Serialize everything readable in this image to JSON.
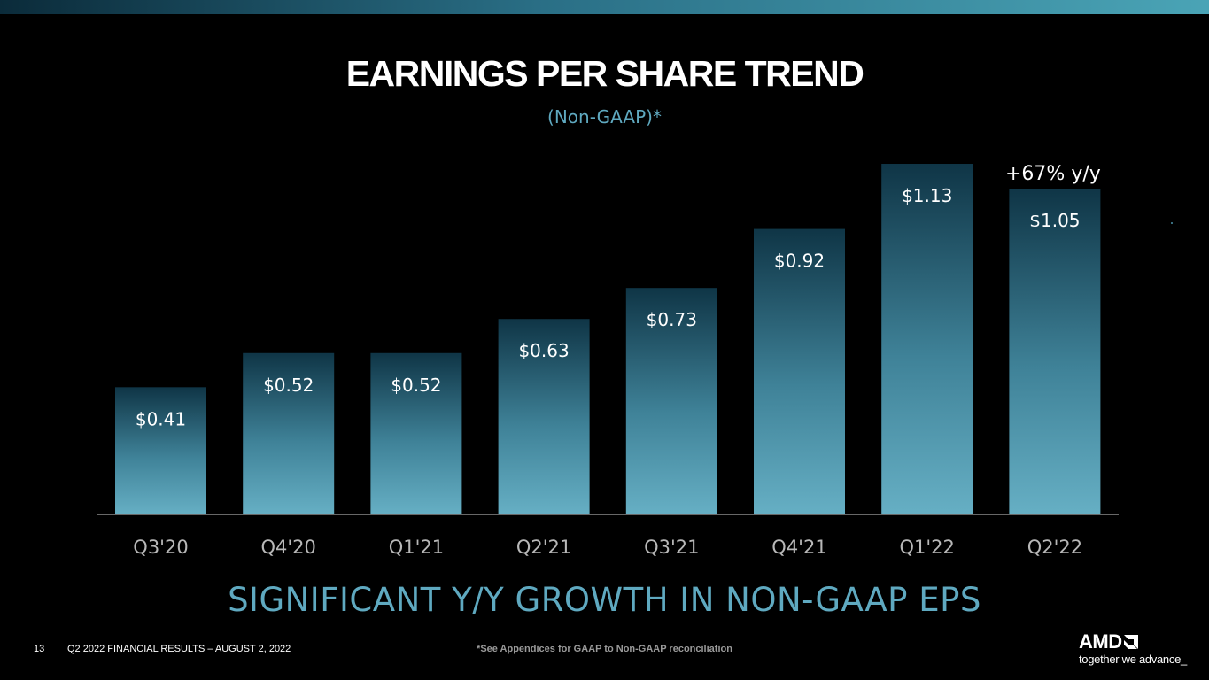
{
  "title": "EARNINGS PER SHARE TREND",
  "subtitle": "(Non-GAAP)*",
  "headline": "SIGNIFICANT Y/Y GROWTH IN NON-GAAP EPS",
  "footer": {
    "page_number": "13",
    "text": "Q2 2022 FINANCIAL RESULTS – AUGUST 2, 2022",
    "footnote": "*See Appendices for GAAP to Non-GAAP reconciliation"
  },
  "logo": {
    "brand": "AMD",
    "tagline": "together we advance_"
  },
  "chart_data": {
    "type": "bar",
    "title": "EARNINGS PER SHARE TREND",
    "subtitle": "(Non-GAAP)*",
    "xlabel": "",
    "ylabel": "",
    "ylim": [
      0,
      1.13
    ],
    "grid": false,
    "categories": [
      "Q3'20",
      "Q4'20",
      "Q1'21",
      "Q2'21",
      "Q3'21",
      "Q4'21",
      "Q1'22",
      "Q2'22"
    ],
    "values": [
      0.41,
      0.52,
      0.52,
      0.63,
      0.73,
      0.92,
      1.13,
      1.05
    ],
    "labels": [
      "$0.41",
      "$0.52",
      "$0.52",
      "$0.63",
      "$0.73",
      "$0.92",
      "$1.13",
      "$1.05"
    ],
    "annotation": {
      "text": "+67% y/y",
      "category": "Q2'22"
    }
  },
  "colors": {
    "bar_top": "#0f3546",
    "bar_bottom": "#66afc4",
    "accent": "#5fa9c0",
    "axis": "#cfcfcf",
    "tick_label": "#b8b8b8"
  }
}
